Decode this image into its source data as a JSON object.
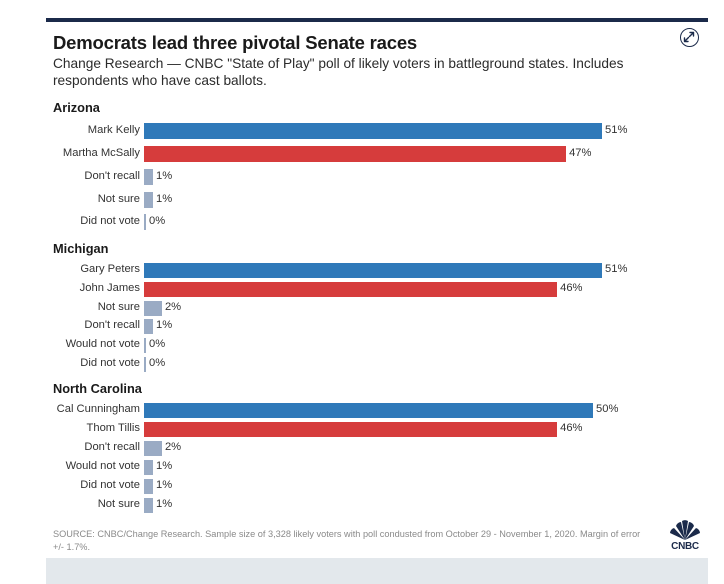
{
  "header": {
    "title": "Democrats lead three pivotal Senate races",
    "subtitle": "Change Research — CNBC \"State of Play\" poll of likely voters in battleground states. Includes respondents who have cast ballots."
  },
  "footer": {
    "source": "SOURCE: CNBC/Change Research. Sample size of 3,328 likely voters with poll condusted from October 29 - November 1, 2020. Margin of error +/- 1.7%.",
    "logo_text": "CNBC"
  },
  "colors": {
    "democrat": "#2f79b9",
    "republican": "#d63c3c",
    "other": "#9aabc4"
  },
  "chart_data": {
    "type": "bar",
    "orientation": "horizontal",
    "value_unit": "%",
    "xlim": [
      0,
      51
    ],
    "groups": [
      {
        "name": "Arizona",
        "categories": [
          "Mark Kelly",
          "Martha McSally",
          "Don't recall",
          "Not sure",
          "Did not vote"
        ],
        "values": [
          51,
          47,
          1,
          1,
          0
        ],
        "labels": [
          "51%",
          "47%",
          "1%",
          "1%",
          "0%"
        ],
        "parties": [
          "democrat",
          "republican",
          "other",
          "other",
          "other"
        ]
      },
      {
        "name": "Michigan",
        "categories": [
          "Gary Peters",
          "John James",
          "Not sure",
          "Don't recall",
          "Would not vote",
          "Did not vote"
        ],
        "values": [
          51,
          46,
          2,
          1,
          0,
          0
        ],
        "labels": [
          "51%",
          "46%",
          "2%",
          "1%",
          "0%",
          "0%"
        ],
        "parties": [
          "democrat",
          "republican",
          "other",
          "other",
          "other",
          "other"
        ]
      },
      {
        "name": "North Carolina",
        "categories": [
          "Cal Cunningham",
          "Thom Tillis",
          "Don't recall",
          "Would not vote",
          "Did not vote",
          "Not sure"
        ],
        "values": [
          50,
          46,
          2,
          1,
          1,
          1
        ],
        "labels": [
          "50%",
          "46%",
          "2%",
          "1%",
          "1%",
          "1%"
        ],
        "parties": [
          "democrat",
          "republican",
          "other",
          "other",
          "other",
          "other"
        ]
      }
    ]
  }
}
